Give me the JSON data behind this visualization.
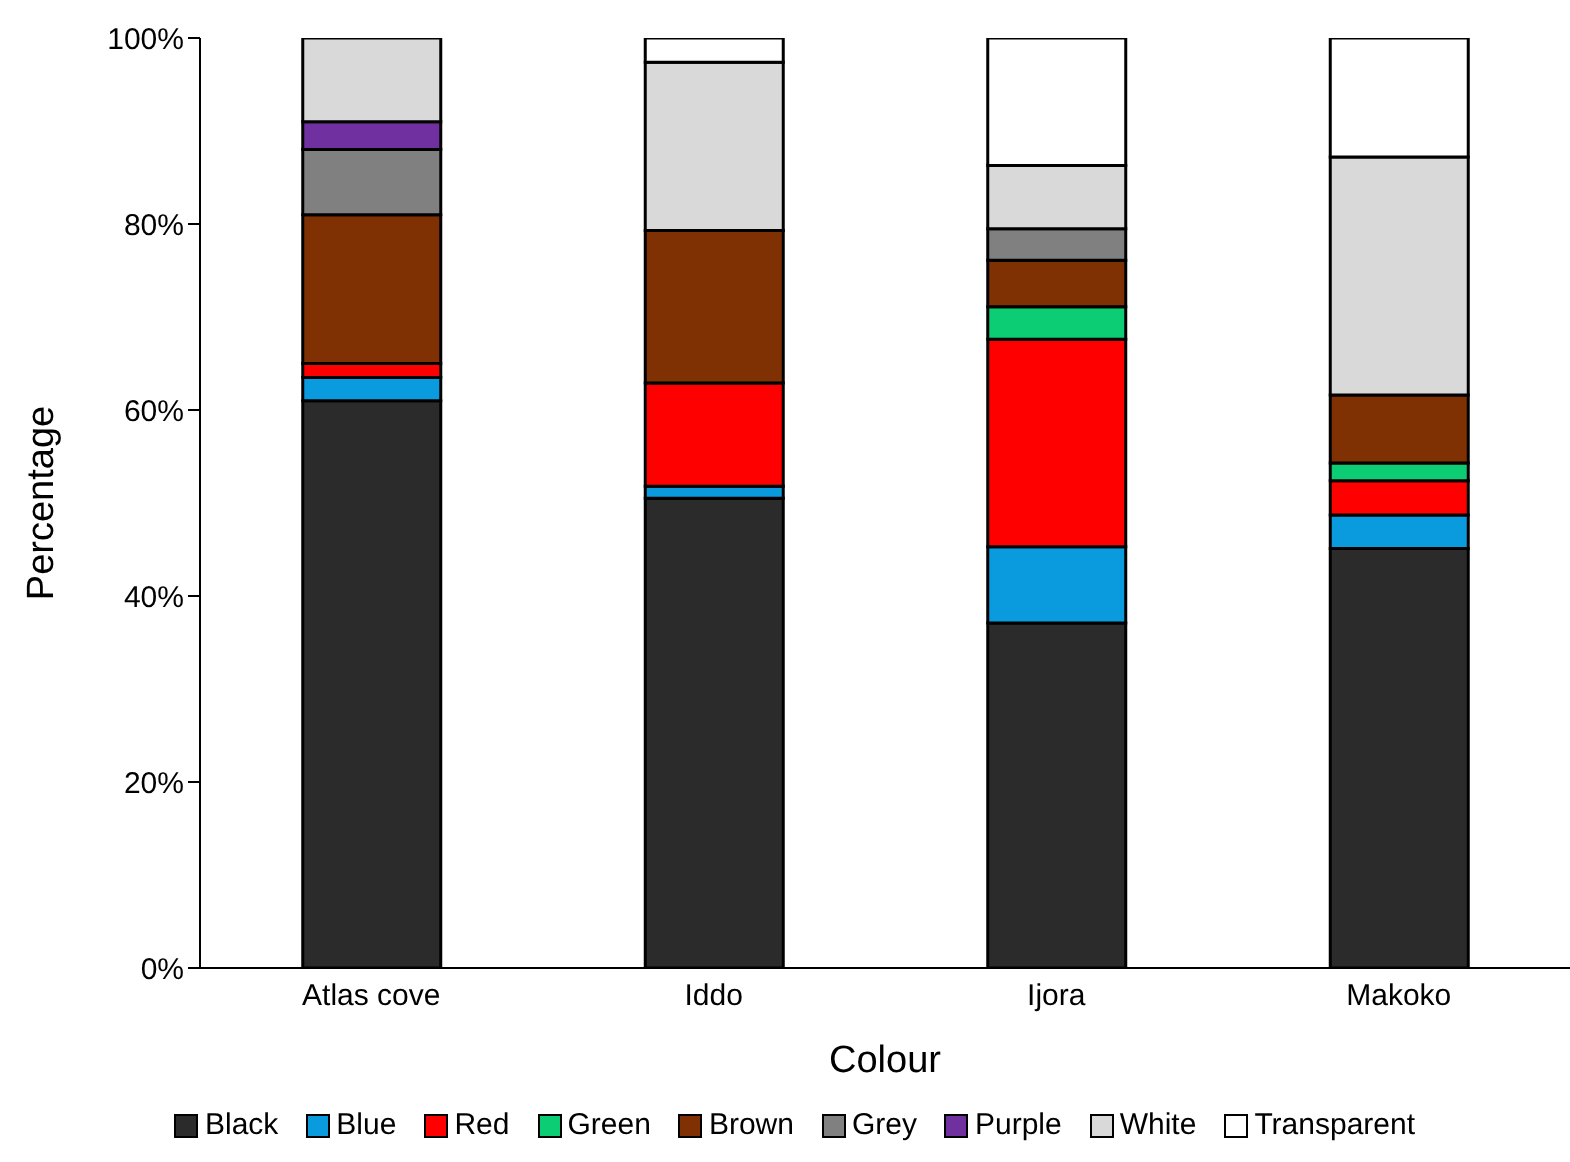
{
  "chart_data": {
    "type": "bar",
    "stacked": true,
    "xlabel": "Colour",
    "ylabel": "Percentage",
    "categories": [
      "Atlas cove",
      "Iddo",
      "Ijora",
      "Makoko"
    ],
    "series": [
      {
        "name": "Black",
        "color": "#2b2b2b",
        "values": [
          61,
          50.5,
          37.1,
          45.1
        ]
      },
      {
        "name": "Blue",
        "color": "#0a9ade",
        "values": [
          2.5,
          1.3,
          8.2,
          3.6
        ]
      },
      {
        "name": "Red",
        "color": "#ff0000",
        "values": [
          1.5,
          11.1,
          22.3,
          3.7
        ]
      },
      {
        "name": "Green",
        "color": "#0ccc74",
        "values": [
          0,
          0,
          3.5,
          1.9
        ]
      },
      {
        "name": "Brown",
        "color": "#7f3104",
        "values": [
          16,
          16.4,
          5,
          7.3
        ]
      },
      {
        "name": "Grey",
        "color": "#808080",
        "values": [
          7,
          0,
          3.4,
          0
        ]
      },
      {
        "name": "Purple",
        "color": "#7030a0",
        "values": [
          3,
          0,
          0,
          0
        ]
      },
      {
        "name": "White",
        "color": "#d9d9d9",
        "values": [
          9,
          18.1,
          6.8,
          25.6
        ]
      },
      {
        "name": "Transparent",
        "color": "#ffffff",
        "values": [
          0,
          2.6,
          13.7,
          12.8
        ]
      }
    ],
    "ylim": [
      0,
      100
    ],
    "yticks": [
      {
        "value": 0,
        "label": "0%"
      },
      {
        "value": 20,
        "label": "20%"
      },
      {
        "value": 40,
        "label": "40%"
      },
      {
        "value": 60,
        "label": "60%"
      },
      {
        "value": 80,
        "label": "80%"
      },
      {
        "value": 100,
        "label": "100%"
      }
    ],
    "grid": false,
    "legend": "bottom"
  }
}
